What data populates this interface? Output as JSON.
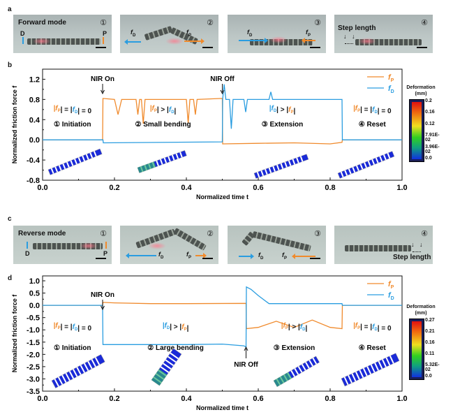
{
  "panels": {
    "a": {
      "letter": "a",
      "mode_title": "Forward mode",
      "steps": [
        "①",
        "②",
        "③",
        "④"
      ],
      "end_labels": {
        "left": "D",
        "right": "P"
      },
      "force_labels": {
        "fD": "f",
        "fD_sub": "D",
        "fP": "f",
        "fP_sub": "P"
      },
      "step_length": "Step length"
    },
    "b": {
      "letter": "b"
    },
    "c": {
      "letter": "c",
      "mode_title": "Reverse mode",
      "steps": [
        "①",
        "②",
        "③",
        "④"
      ],
      "end_labels": {
        "left": "D",
        "right": "P"
      },
      "force_labels": {
        "fD": "f",
        "fD_sub": "D",
        "fP": "f",
        "fP_sub": "P"
      },
      "step_length": "Step length"
    },
    "d": {
      "letter": "d"
    }
  },
  "colors": {
    "fP": "#f08a2c",
    "fD": "#2a9de0",
    "axis": "#111111"
  },
  "chart_data": [
    {
      "type": "line",
      "panel": "b",
      "title": "",
      "xlabel": "Normalized time t",
      "ylabel": "Normalized friction force f",
      "xlim": [
        0.0,
        1.0
      ],
      "ylim": [
        -0.8,
        1.4
      ],
      "xticks": [
        "0.0",
        "0.2",
        "0.4",
        "0.6",
        "0.8",
        "1.0"
      ],
      "xtick_values": [
        0.0,
        0.2,
        0.4,
        0.6,
        0.8,
        1.0
      ],
      "yticks": [
        "1.2",
        "0.8",
        "0.4",
        "0.0",
        "-0.4",
        "-0.8"
      ],
      "ytick_values": [
        1.2,
        0.8,
        0.4,
        0.0,
        -0.4,
        -0.8
      ],
      "legend": {
        "position": "top-right",
        "entries": [
          {
            "name": "fP",
            "label": "f",
            "sub": "P"
          },
          {
            "name": "fD",
            "label": "f",
            "sub": "D"
          }
        ]
      },
      "series": [
        {
          "name": "fP",
          "points": [
            [
              0.0,
              0.0
            ],
            [
              0.167,
              0.0
            ],
            [
              0.168,
              0.82
            ],
            [
              0.2,
              0.8
            ],
            [
              0.21,
              0.5
            ],
            [
              0.22,
              0.8
            ],
            [
              0.26,
              0.8
            ],
            [
              0.265,
              0.5
            ],
            [
              0.27,
              0.8
            ],
            [
              0.275,
              0.8
            ],
            [
              0.28,
              0.32
            ],
            [
              0.285,
              0.8
            ],
            [
              0.4,
              0.8
            ],
            [
              0.405,
              0.33
            ],
            [
              0.41,
              0.8
            ],
            [
              0.42,
              0.8
            ],
            [
              0.425,
              0.5
            ],
            [
              0.43,
              0.8
            ],
            [
              0.5,
              0.82
            ],
            [
              0.501,
              -0.08
            ],
            [
              0.6,
              -0.07
            ],
            [
              0.7,
              -0.06
            ],
            [
              0.8,
              -0.08
            ],
            [
              0.833,
              -0.05
            ],
            [
              0.834,
              0.0
            ],
            [
              1.0,
              0.0
            ]
          ]
        },
        {
          "name": "fD",
          "points": [
            [
              0.0,
              0.0
            ],
            [
              0.168,
              0.0
            ],
            [
              0.169,
              -0.06
            ],
            [
              0.5,
              -0.04
            ],
            [
              0.501,
              0.8
            ],
            [
              0.505,
              1.1
            ],
            [
              0.51,
              0.8
            ],
            [
              0.52,
              0.8
            ],
            [
              0.525,
              0.22
            ],
            [
              0.53,
              0.8
            ],
            [
              0.56,
              0.8
            ],
            [
              0.565,
              0.55
            ],
            [
              0.57,
              0.8
            ],
            [
              0.63,
              0.8
            ],
            [
              0.635,
              0.95
            ],
            [
              0.64,
              0.8
            ],
            [
              0.77,
              0.8
            ],
            [
              0.833,
              0.8
            ],
            [
              0.834,
              0.0
            ],
            [
              1.0,
              0.0
            ]
          ]
        }
      ],
      "annotations": [
        {
          "text": "NIR On",
          "x": 0.167,
          "arrow": "down"
        },
        {
          "text": "NIR Off",
          "x": 0.5,
          "arrow": "down"
        }
      ],
      "phases": [
        {
          "relation": [
            {
              "t": "|f",
              "s": "P",
              "c": "fP"
            },
            {
              "t": "| = |"
            },
            {
              "t": "f",
              "s": "D",
              "c": "fD"
            },
            {
              "t": "| = 0"
            }
          ],
          "label": "① Initiation",
          "x": 0.083
        },
        {
          "relation": [
            {
              "t": "|f",
              "s": "P",
              "c": "fP"
            },
            {
              "t": "| > |"
            },
            {
              "t": "f",
              "s": "D",
              "c": "fD"
            },
            {
              "t": "|"
            }
          ],
          "label": "② Small bending",
          "x": 0.335
        },
        {
          "relation": [
            {
              "t": "|f",
              "s": "D",
              "c": "fD"
            },
            {
              "t": "| > |"
            },
            {
              "t": "f",
              "s": "P",
              "c": "fP"
            },
            {
              "t": "|"
            }
          ],
          "label": "③ Extension",
          "x": 0.667
        },
        {
          "relation": [
            {
              "t": "|f",
              "s": "P",
              "c": "fP"
            },
            {
              "t": "| = |"
            },
            {
              "t": "f",
              "s": "D",
              "c": "fD"
            },
            {
              "t": "| = 0"
            }
          ],
          "label": "④ Reset",
          "x": 0.917
        }
      ],
      "colorbar": {
        "title": "Deformation",
        "unit": "(mm)",
        "ticks": [
          "0.2",
          "0.16",
          "0.12",
          "7.91E-02",
          "3.96E-02",
          "0.0"
        ]
      }
    },
    {
      "type": "line",
      "panel": "d",
      "title": "",
      "xlabel": "Normalized time t",
      "ylabel": "Normalized friction force f",
      "xlim": [
        0.0,
        1.0
      ],
      "ylim": [
        -3.5,
        1.2
      ],
      "xticks": [
        "0.0",
        "0.2",
        "0.4",
        "0.6",
        "0.8",
        "1.0"
      ],
      "xtick_values": [
        0.0,
        0.2,
        0.4,
        0.6,
        0.8,
        1.0
      ],
      "yticks": [
        "1.0",
        "0.5",
        "0.0",
        "-0.5",
        "-1.0",
        "-1.5",
        "-2.0",
        "-2.5",
        "-3.0",
        "-3.5"
      ],
      "ytick_values": [
        1.0,
        0.5,
        0.0,
        -0.5,
        -1.0,
        -1.5,
        -2.0,
        -2.5,
        -3.0,
        -3.5
      ],
      "legend": {
        "position": "top-right",
        "entries": [
          {
            "name": "fP",
            "label": "f",
            "sub": "P"
          },
          {
            "name": "fD",
            "label": "f",
            "sub": "D"
          }
        ]
      },
      "series": [
        {
          "name": "fP",
          "points": [
            [
              0.0,
              0.0
            ],
            [
              0.167,
              0.0
            ],
            [
              0.168,
              0.12
            ],
            [
              0.2,
              0.1
            ],
            [
              0.3,
              0.07
            ],
            [
              0.4,
              0.07
            ],
            [
              0.566,
              0.08
            ],
            [
              0.567,
              -0.95
            ],
            [
              0.6,
              -0.9
            ],
            [
              0.65,
              -0.65
            ],
            [
              0.7,
              -0.9
            ],
            [
              0.75,
              -0.6
            ],
            [
              0.8,
              -0.9
            ],
            [
              0.833,
              -0.95
            ],
            [
              0.834,
              0.0
            ],
            [
              1.0,
              0.0
            ]
          ]
        },
        {
          "name": "fD",
          "points": [
            [
              0.0,
              0.0
            ],
            [
              0.167,
              0.0
            ],
            [
              0.168,
              -1.6
            ],
            [
              0.4,
              -1.6
            ],
            [
              0.5,
              -1.58
            ],
            [
              0.56,
              -1.65
            ],
            [
              0.566,
              -1.7
            ],
            [
              0.567,
              0.75
            ],
            [
              0.58,
              0.65
            ],
            [
              0.6,
              0.4
            ],
            [
              0.63,
              0.07
            ],
            [
              0.8,
              0.07
            ],
            [
              0.833,
              0.07
            ],
            [
              0.834,
              0.0
            ],
            [
              1.0,
              0.0
            ]
          ]
        }
      ],
      "annotations": [
        {
          "text": "NIR On",
          "x": 0.167,
          "arrow": "down"
        },
        {
          "text": "NIR Off",
          "x": 0.566,
          "arrow": "up"
        }
      ],
      "phases": [
        {
          "relation": [
            {
              "t": "|f",
              "s": "P",
              "c": "fP"
            },
            {
              "t": "| = |"
            },
            {
              "t": "f",
              "s": "D",
              "c": "fD"
            },
            {
              "t": "| = 0"
            }
          ],
          "label": "① Initiation",
          "x": 0.083
        },
        {
          "relation": [
            {
              "t": "|f",
              "s": "D",
              "c": "fD"
            },
            {
              "t": "| > |"
            },
            {
              "t": "f",
              "s": "P",
              "c": "fP"
            },
            {
              "t": "|"
            }
          ],
          "label": "② Large bending",
          "x": 0.37
        },
        {
          "relation": [
            {
              "t": "|f",
              "s": "P",
              "c": "fP"
            },
            {
              "t": "| > |"
            },
            {
              "t": "f",
              "s": "D",
              "c": "fD"
            },
            {
              "t": "|"
            }
          ],
          "label": "③ Extension",
          "x": 0.7
        },
        {
          "relation": [
            {
              "t": "|f",
              "s": "P",
              "c": "fP"
            },
            {
              "t": "| = |"
            },
            {
              "t": "f",
              "s": "D",
              "c": "fD"
            },
            {
              "t": "| = 0"
            }
          ],
          "label": "④ Reset",
          "x": 0.917
        }
      ],
      "colorbar": {
        "title": "Deformation",
        "unit": "(mm)",
        "ticks": [
          "0.27",
          "0.21",
          "0.16",
          "0.11",
          "5.32E-02",
          "0.0"
        ]
      }
    }
  ]
}
